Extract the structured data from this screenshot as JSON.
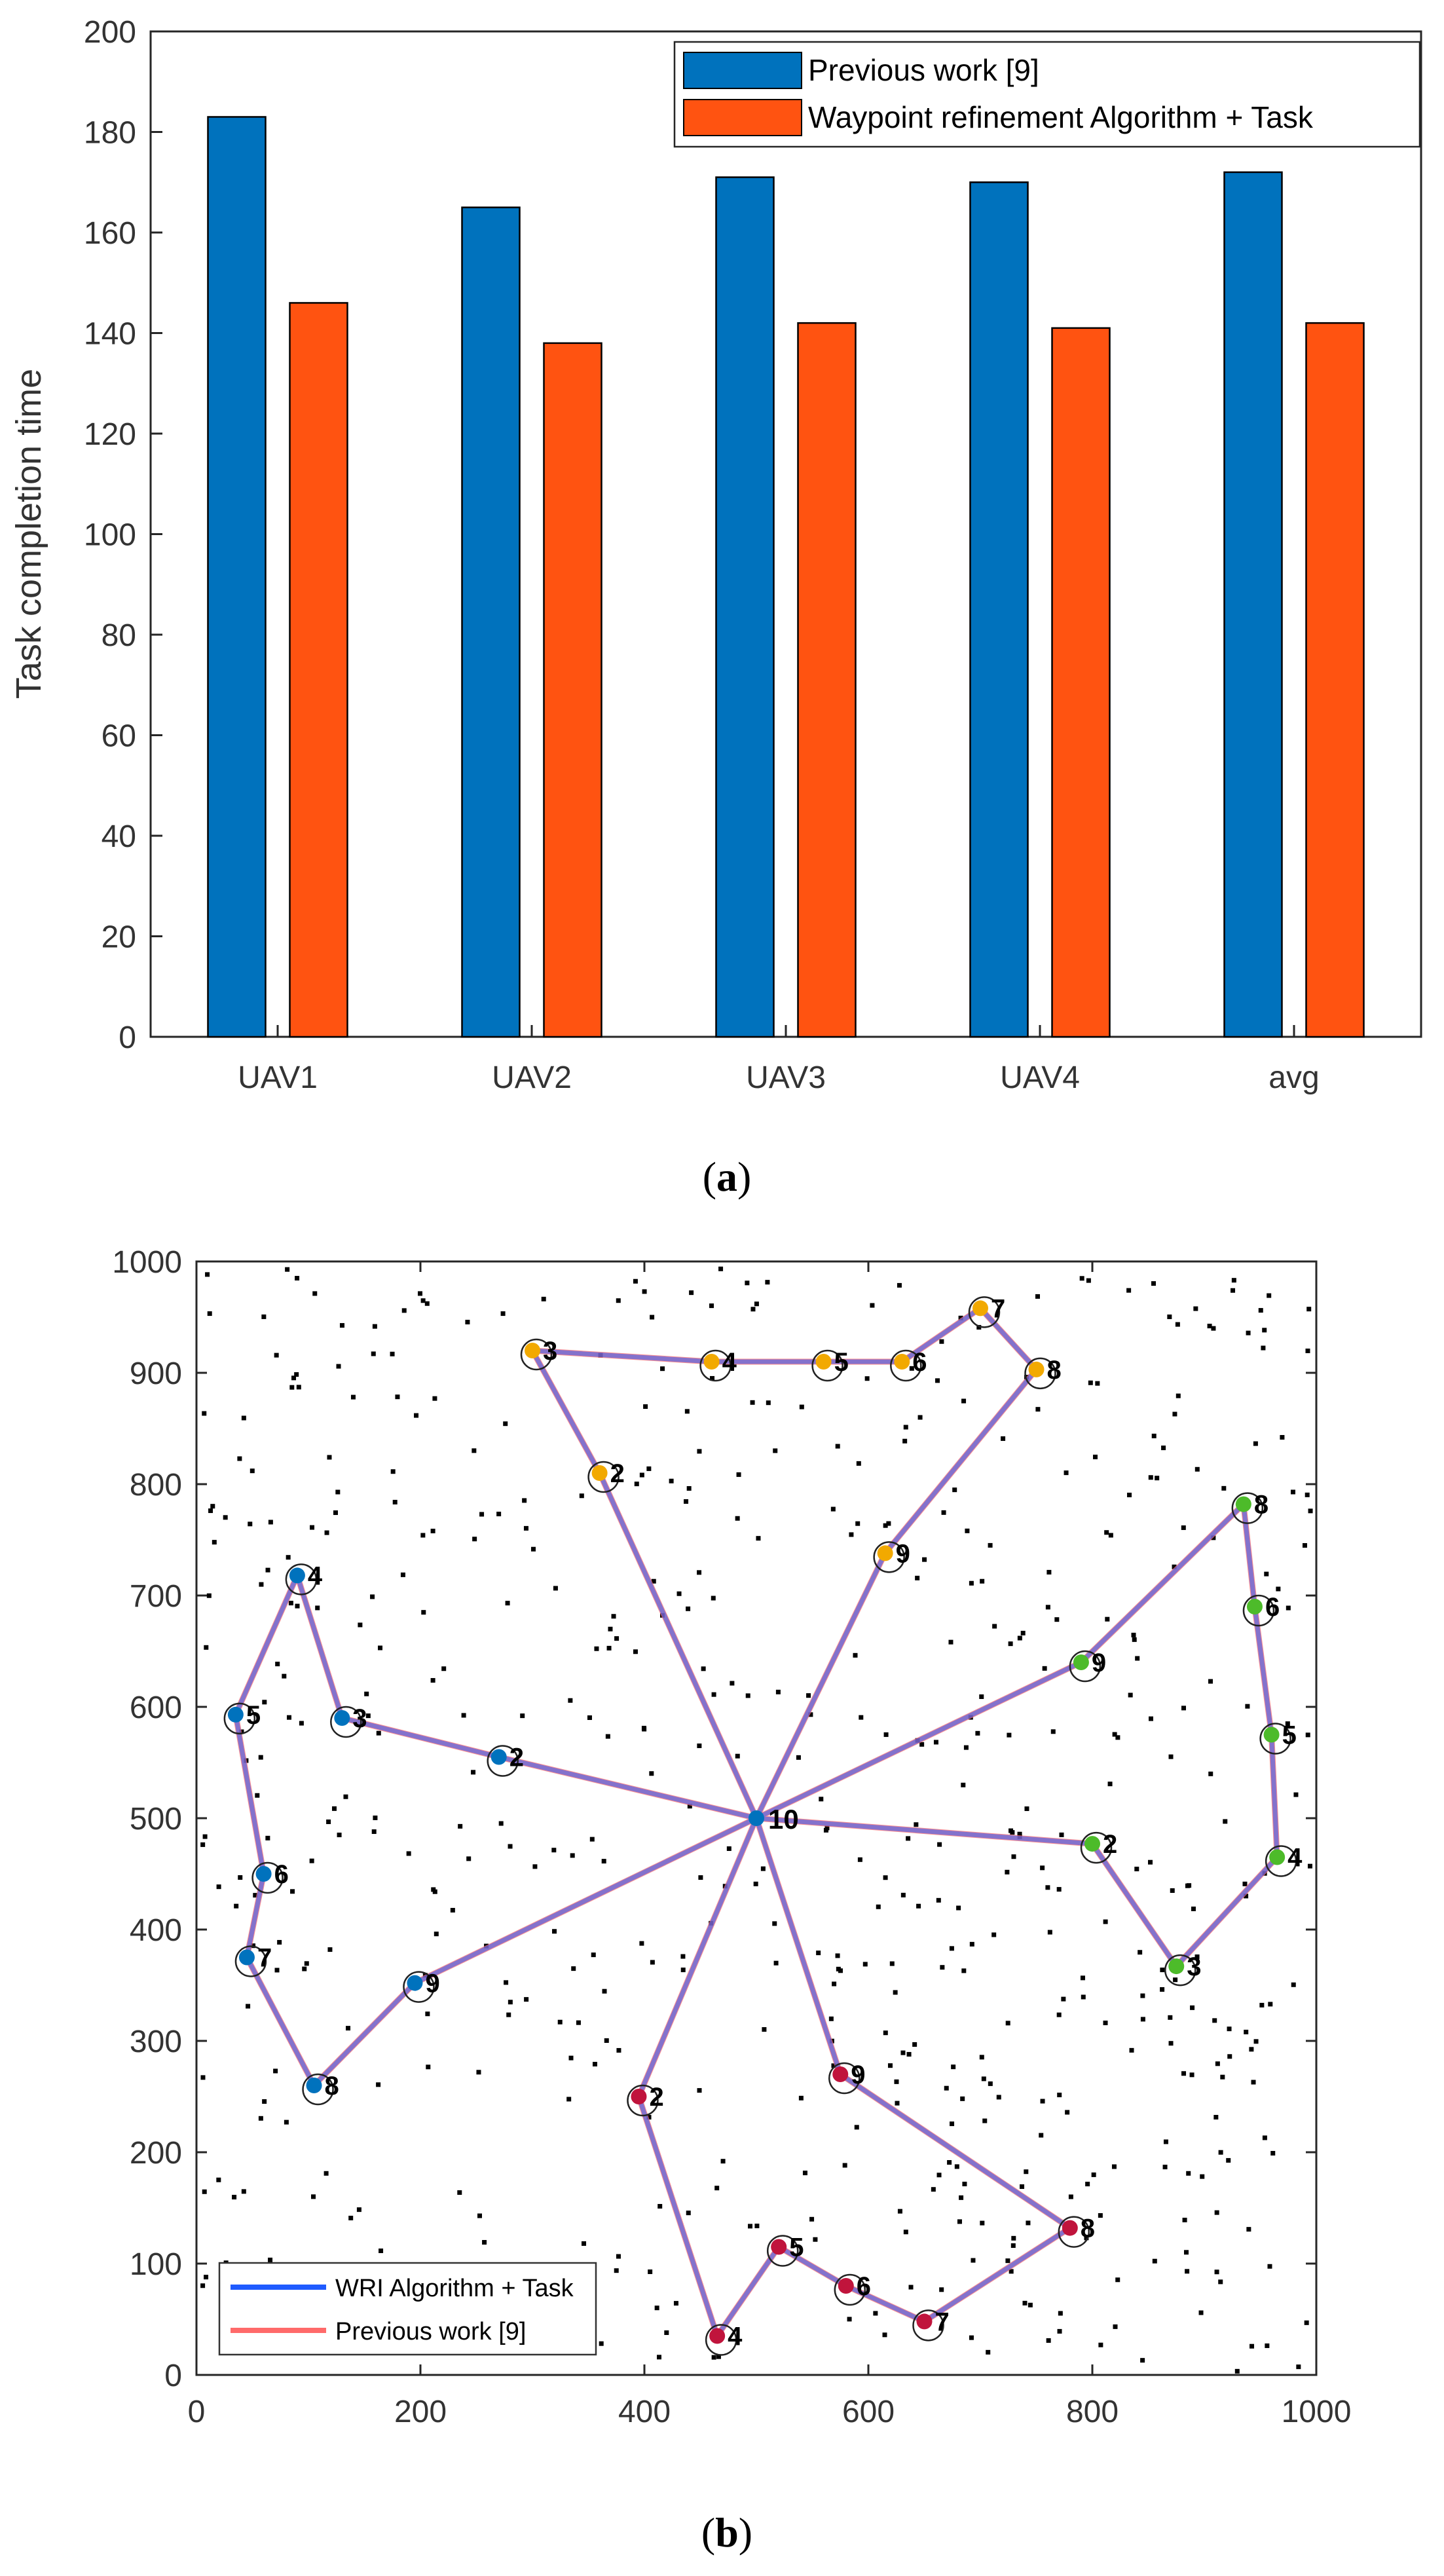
{
  "chart_data": [
    {
      "type": "bar",
      "caption": "(a)",
      "caption_letter": "a",
      "ylabel": "Task completion time",
      "xlabel": "",
      "ylim": [
        0,
        200
      ],
      "yticks": [
        0,
        20,
        40,
        60,
        80,
        100,
        120,
        140,
        160,
        180,
        200
      ],
      "categories": [
        "UAV1",
        "UAV2",
        "UAV3",
        "UAV4",
        "avg"
      ],
      "series": [
        {
          "name": "Previous work [9]",
          "color": "#0072BD",
          "values": [
            183,
            165,
            171,
            170,
            172
          ]
        },
        {
          "name": "Waypoint refinement Algorithm + Task",
          "color": "#FF5311",
          "values": [
            146,
            138,
            142,
            141,
            142
          ]
        }
      ],
      "legend_position": "top-right"
    },
    {
      "type": "line",
      "caption": "(b)",
      "caption_letter": "b",
      "xlim": [
        0,
        1000
      ],
      "ylim": [
        0,
        1000
      ],
      "xticks": [
        0,
        200,
        400,
        600,
        800,
        1000
      ],
      "yticks": [
        0,
        100,
        200,
        300,
        400,
        500,
        600,
        700,
        800,
        900,
        1000
      ],
      "depot": {
        "label": "10",
        "x": 500,
        "y": 500
      },
      "legend_position": "bottom-left",
      "series": [
        {
          "name": "WRI Algorithm + Task",
          "color": "#1F5BFF"
        },
        {
          "name": "Previous work [9]",
          "color": "#FF6A6A"
        }
      ],
      "routes": [
        {
          "color": "#F2A900",
          "points": [
            {
              "label": "2",
              "x": 360,
              "y": 810
            },
            {
              "label": "3",
              "x": 300,
              "y": 920
            },
            {
              "label": "4",
              "x": 460,
              "y": 910
            },
            {
              "label": "5",
              "x": 560,
              "y": 910
            },
            {
              "label": "6",
              "x": 630,
              "y": 910
            },
            {
              "label": "7",
              "x": 700,
              "y": 958
            },
            {
              "label": "8",
              "x": 750,
              "y": 903
            },
            {
              "label": "9",
              "x": 615,
              "y": 738
            }
          ]
        },
        {
          "color": "#4DBB2A",
          "points": [
            {
              "label": "9",
              "x": 790,
              "y": 640
            },
            {
              "label": "8",
              "x": 935,
              "y": 782
            },
            {
              "label": "6",
              "x": 945,
              "y": 690
            },
            {
              "label": "5",
              "x": 960,
              "y": 575
            },
            {
              "label": "4",
              "x": 965,
              "y": 465
            },
            {
              "label": "3",
              "x": 875,
              "y": 367
            },
            {
              "label": "2",
              "x": 800,
              "y": 477
            }
          ]
        },
        {
          "color": "#C0143C",
          "points": [
            {
              "label": "9",
              "x": 575,
              "y": 270
            },
            {
              "label": "8",
              "x": 780,
              "y": 132
            },
            {
              "label": "7",
              "x": 650,
              "y": 48
            },
            {
              "label": "6",
              "x": 580,
              "y": 80
            },
            {
              "label": "5",
              "x": 520,
              "y": 115
            },
            {
              "label": "4",
              "x": 465,
              "y": 35
            },
            {
              "label": "2",
              "x": 395,
              "y": 250
            }
          ]
        },
        {
          "color": "#0072BD",
          "points": [
            {
              "label": "2",
              "x": 270,
              "y": 555
            },
            {
              "label": "3",
              "x": 130,
              "y": 590
            },
            {
              "label": "4",
              "x": 90,
              "y": 718
            },
            {
              "label": "5",
              "x": 35,
              "y": 593
            },
            {
              "label": "6",
              "x": 60,
              "y": 450
            },
            {
              "label": "7",
              "x": 45,
              "y": 375
            },
            {
              "label": "8",
              "x": 105,
              "y": 260
            },
            {
              "label": "9",
              "x": 195,
              "y": 352
            }
          ]
        }
      ]
    }
  ]
}
